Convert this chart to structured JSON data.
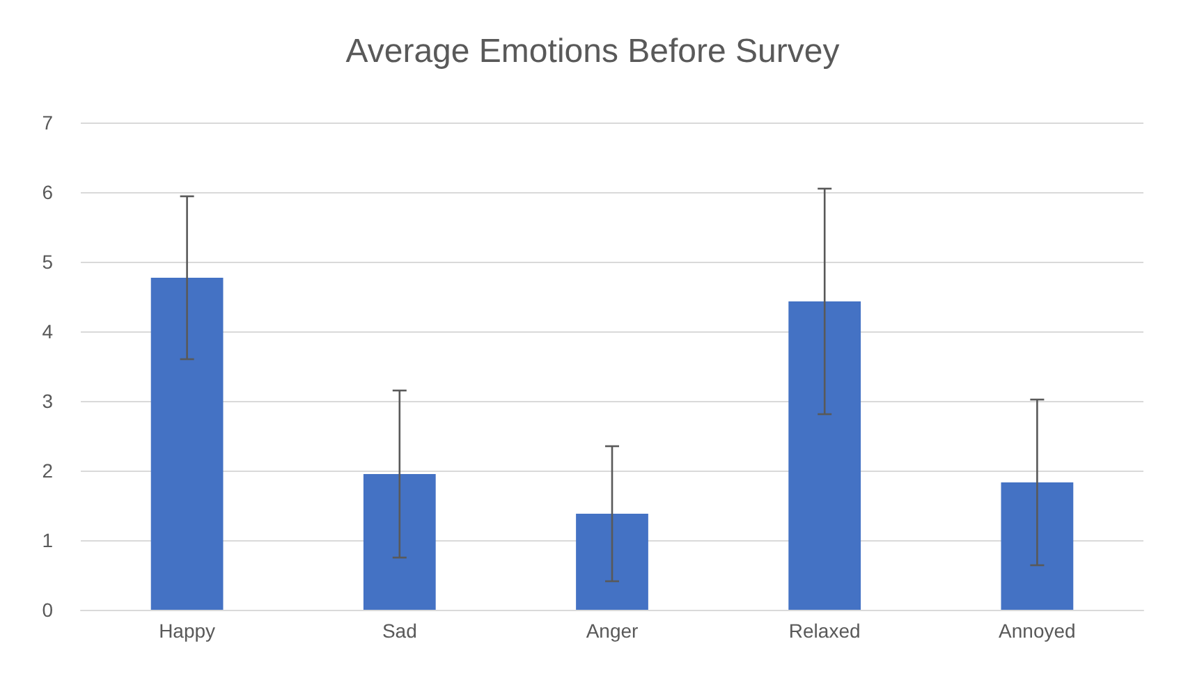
{
  "chart_data": {
    "type": "bar",
    "title": "Average Emotions Before Survey",
    "categories": [
      "Happy",
      "Sad",
      "Anger",
      "Relaxed",
      "Annoyed"
    ],
    "values": [
      4.77,
      1.95,
      1.38,
      4.43,
      1.83
    ],
    "errors": [
      1.17,
      1.2,
      0.97,
      1.62,
      1.19
    ],
    "color": "#4472c4",
    "ylim": [
      0,
      7
    ],
    "yticks": [
      0,
      1,
      2,
      3,
      4,
      5,
      6,
      7
    ],
    "grid": "y"
  }
}
